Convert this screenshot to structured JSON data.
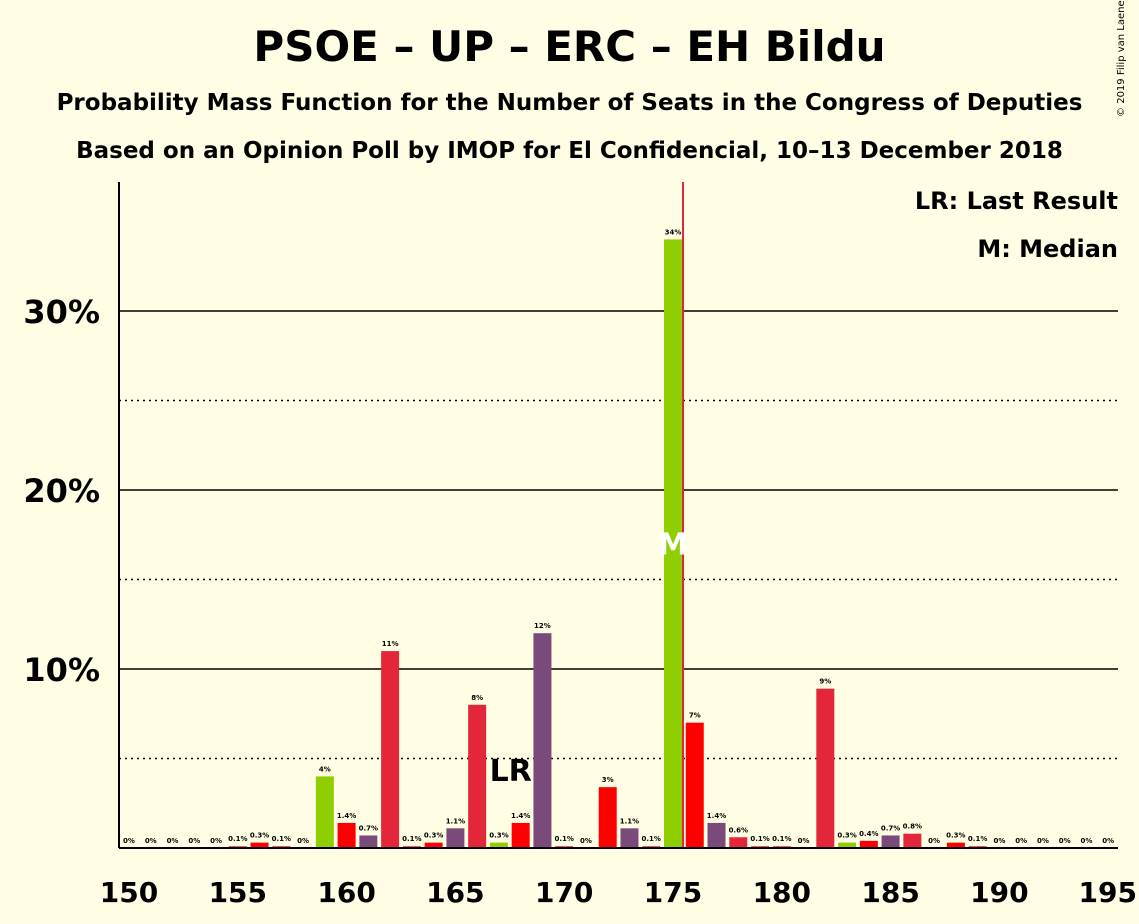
{
  "title": "PSOE – UP – ERC – EH Bildu",
  "subtitle1": "Probability Mass Function for the Number of Seats in the Congress of Deputies",
  "subtitle2": "Based on an Opinion Poll by IMOP for El Confidencial, 10–13 December 2018",
  "copyright": "© 2019 Filip van Laenen",
  "colors": {
    "background": "#FFFEE4",
    "green": "#8FCE00",
    "red": "#FF0000",
    "crimson": "#E3263A",
    "purple": "#7A4A7A",
    "median_line": "#E3263A"
  },
  "chart_data": {
    "type": "bar",
    "xlim": [
      150,
      195
    ],
    "ylim": [
      0,
      37
    ],
    "x_ticks": [
      "150",
      "155",
      "160",
      "165",
      "170",
      "175",
      "180",
      "185",
      "190",
      "195"
    ],
    "y_ticks": [
      {
        "value": 10,
        "label": "10%"
      },
      {
        "value": 20,
        "label": "20%"
      },
      {
        "value": 30,
        "label": "30%"
      }
    ],
    "minor_grid": [
      5,
      15,
      25
    ],
    "last_result": 168,
    "median": 175,
    "legend": [
      "LR: Last Result",
      "M: Median"
    ],
    "lr_label": "LR",
    "median_label": "M",
    "bars": [
      {
        "seats": 150,
        "value": 0,
        "label": "0%",
        "color": "crimson"
      },
      {
        "seats": 151,
        "value": 0,
        "label": "0%",
        "color": "crimson"
      },
      {
        "seats": 152,
        "value": 0,
        "label": "0%",
        "color": "crimson"
      },
      {
        "seats": 153,
        "value": 0,
        "label": "0%",
        "color": "crimson"
      },
      {
        "seats": 154,
        "value": 0,
        "label": "0%",
        "color": "crimson"
      },
      {
        "seats": 155,
        "value": 0.1,
        "label": "0.1%",
        "color": "crimson"
      },
      {
        "seats": 156,
        "value": 0.3,
        "label": "0.3%",
        "color": "red"
      },
      {
        "seats": 157,
        "value": 0.1,
        "label": "0.1%",
        "color": "crimson"
      },
      {
        "seats": 158,
        "value": 0,
        "label": "0%",
        "color": "crimson"
      },
      {
        "seats": 159,
        "value": 4,
        "label": "4%",
        "color": "green"
      },
      {
        "seats": 160,
        "value": 1.4,
        "label": "1.4%",
        "color": "red"
      },
      {
        "seats": 161,
        "value": 0.7,
        "label": "0.7%",
        "color": "purple"
      },
      {
        "seats": 162,
        "value": 11,
        "label": "11%",
        "color": "crimson"
      },
      {
        "seats": 163,
        "value": 0.1,
        "label": "0.1%",
        "color": "crimson"
      },
      {
        "seats": 164,
        "value": 0.3,
        "label": "0.3%",
        "color": "red"
      },
      {
        "seats": 165,
        "value": 1.1,
        "label": "1.1%",
        "color": "purple"
      },
      {
        "seats": 166,
        "value": 8,
        "label": "8%",
        "color": "crimson"
      },
      {
        "seats": 167,
        "value": 0.3,
        "label": "0.3%",
        "color": "green"
      },
      {
        "seats": 168,
        "value": 1.4,
        "label": "1.4%",
        "color": "red"
      },
      {
        "seats": 169,
        "value": 12,
        "label": "12%",
        "color": "purple"
      },
      {
        "seats": 170,
        "value": 0.1,
        "label": "0.1%",
        "color": "crimson"
      },
      {
        "seats": 171,
        "value": 0,
        "label": "0%",
        "color": "crimson"
      },
      {
        "seats": 172,
        "value": 3.4,
        "label": "3%",
        "color": "red"
      },
      {
        "seats": 173,
        "value": 1.1,
        "label": "1.1%",
        "color": "purple"
      },
      {
        "seats": 174,
        "value": 0.1,
        "label": "0.1%",
        "color": "crimson"
      },
      {
        "seats": 175,
        "value": 34,
        "label": "34%",
        "color": "green"
      },
      {
        "seats": 176,
        "value": 7,
        "label": "7%",
        "color": "red"
      },
      {
        "seats": 177,
        "value": 1.4,
        "label": "1.4%",
        "color": "purple"
      },
      {
        "seats": 178,
        "value": 0.6,
        "label": "0.6%",
        "color": "crimson"
      },
      {
        "seats": 179,
        "value": 0.1,
        "label": "0.1%",
        "color": "crimson"
      },
      {
        "seats": 180,
        "value": 0.1,
        "label": "0.1%",
        "color": "crimson"
      },
      {
        "seats": 181,
        "value": 0,
        "label": "0%",
        "color": "crimson"
      },
      {
        "seats": 182,
        "value": 8.9,
        "label": "9%",
        "color": "crimson"
      },
      {
        "seats": 183,
        "value": 0.3,
        "label": "0.3%",
        "color": "green"
      },
      {
        "seats": 184,
        "value": 0.4,
        "label": "0.4%",
        "color": "red"
      },
      {
        "seats": 185,
        "value": 0.7,
        "label": "0.7%",
        "color": "purple"
      },
      {
        "seats": 186,
        "value": 0.8,
        "label": "0.8%",
        "color": "crimson"
      },
      {
        "seats": 187,
        "value": 0,
        "label": "0%",
        "color": "crimson"
      },
      {
        "seats": 188,
        "value": 0.3,
        "label": "0.3%",
        "color": "red"
      },
      {
        "seats": 189,
        "value": 0.1,
        "label": "0.1%",
        "color": "crimson"
      },
      {
        "seats": 190,
        "value": 0,
        "label": "0%",
        "color": "crimson"
      },
      {
        "seats": 191,
        "value": 0,
        "label": "0%",
        "color": "crimson"
      },
      {
        "seats": 192,
        "value": 0,
        "label": "0%",
        "color": "crimson"
      },
      {
        "seats": 193,
        "value": 0,
        "label": "0%",
        "color": "crimson"
      },
      {
        "seats": 194,
        "value": 0,
        "label": "0%",
        "color": "crimson"
      },
      {
        "seats": 195,
        "value": 0,
        "label": "0%",
        "color": "crimson"
      }
    ]
  }
}
